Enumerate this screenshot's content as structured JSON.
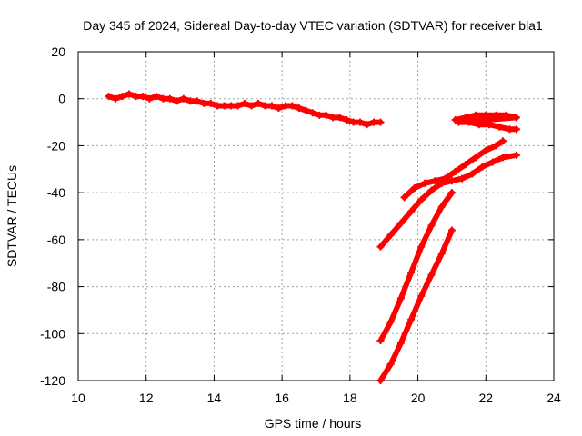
{
  "chart_data": {
    "type": "scatter",
    "title": "Day 345 of 2024, Sidereal Day-to-day VTEC variation (SDTVAR) for receiver bla1",
    "xlabel": "GPS time / hours",
    "ylabel": "SDTVAR / TECUs",
    "xlim": [
      10,
      24
    ],
    "ylim": [
      -120,
      20
    ],
    "xticks": [
      "10",
      "12",
      "14",
      "16",
      "18",
      "20",
      "22",
      "24"
    ],
    "yticks": [
      "20",
      "0",
      "-20",
      "-40",
      "-60",
      "-80",
      "-100",
      "-120"
    ],
    "grid": true,
    "legend": "none",
    "marker_color": "#ff0000",
    "series": [
      {
        "values": [
          [
            10.9,
            1
          ],
          [
            11.1,
            0
          ],
          [
            11.3,
            1
          ],
          [
            11.5,
            2
          ],
          [
            11.7,
            1
          ],
          [
            11.9,
            1
          ],
          [
            12.1,
            0
          ],
          [
            12.3,
            1
          ],
          [
            12.5,
            0
          ],
          [
            12.7,
            0
          ],
          [
            12.9,
            -1
          ],
          [
            13.1,
            0
          ],
          [
            13.3,
            -1
          ],
          [
            13.5,
            -1
          ],
          [
            13.7,
            -2
          ],
          [
            13.9,
            -2
          ],
          [
            14.1,
            -3
          ],
          [
            14.3,
            -3
          ],
          [
            14.5,
            -3
          ],
          [
            14.7,
            -3
          ],
          [
            14.9,
            -2
          ],
          [
            15.1,
            -3
          ],
          [
            15.3,
            -2
          ],
          [
            15.5,
            -3
          ],
          [
            15.7,
            -3
          ],
          [
            15.9,
            -4
          ],
          [
            16.1,
            -3
          ],
          [
            16.3,
            -3
          ],
          [
            16.5,
            -4
          ],
          [
            16.7,
            -5
          ],
          [
            16.9,
            -6
          ],
          [
            17.1,
            -7
          ],
          [
            17.3,
            -7
          ],
          [
            17.5,
            -8
          ],
          [
            17.7,
            -8
          ],
          [
            17.9,
            -9
          ],
          [
            18.1,
            -10
          ],
          [
            18.3,
            -10
          ],
          [
            18.5,
            -11
          ],
          [
            18.7,
            -10
          ],
          [
            18.9,
            -10
          ]
        ]
      },
      {
        "values": [
          [
            21.1,
            -9
          ],
          [
            21.4,
            -8
          ],
          [
            21.7,
            -7
          ],
          [
            22.0,
            -7
          ],
          [
            22.3,
            -7
          ],
          [
            22.6,
            -7
          ],
          [
            22.9,
            -8
          ],
          [
            21.2,
            -10
          ],
          [
            21.5,
            -10
          ],
          [
            21.8,
            -11
          ],
          [
            22.1,
            -11
          ],
          [
            22.4,
            -12
          ],
          [
            22.7,
            -13
          ],
          [
            22.9,
            -13
          ]
        ]
      },
      {
        "values": [
          [
            18.9,
            -63
          ],
          [
            19.2,
            -58
          ],
          [
            19.5,
            -53
          ],
          [
            19.8,
            -48
          ],
          [
            20.1,
            -43
          ],
          [
            20.4,
            -39
          ],
          [
            20.7,
            -36
          ],
          [
            21.0,
            -35
          ],
          [
            21.3,
            -34
          ],
          [
            21.6,
            -32
          ],
          [
            21.9,
            -29
          ],
          [
            22.2,
            -27
          ],
          [
            22.5,
            -25
          ],
          [
            22.9,
            -24
          ]
        ]
      },
      {
        "values": [
          [
            19.6,
            -42
          ],
          [
            19.9,
            -38
          ],
          [
            20.2,
            -36
          ],
          [
            20.5,
            -35
          ],
          [
            20.8,
            -34
          ],
          [
            21.1,
            -31
          ],
          [
            21.4,
            -28
          ],
          [
            21.7,
            -25
          ],
          [
            22.0,
            -22
          ],
          [
            22.3,
            -20
          ],
          [
            22.5,
            -18
          ]
        ]
      },
      {
        "values": [
          [
            18.9,
            -103
          ],
          [
            19.2,
            -95
          ],
          [
            19.5,
            -85
          ],
          [
            19.8,
            -74
          ],
          [
            20.1,
            -63
          ],
          [
            20.4,
            -54
          ],
          [
            20.7,
            -46
          ],
          [
            21.0,
            -40
          ]
        ]
      },
      {
        "values": [
          [
            18.9,
            -120
          ],
          [
            19.2,
            -113
          ],
          [
            19.5,
            -104
          ],
          [
            19.8,
            -94
          ],
          [
            20.1,
            -84
          ],
          [
            20.4,
            -75
          ],
          [
            20.7,
            -66
          ],
          [
            21.0,
            -56
          ]
        ]
      }
    ]
  }
}
